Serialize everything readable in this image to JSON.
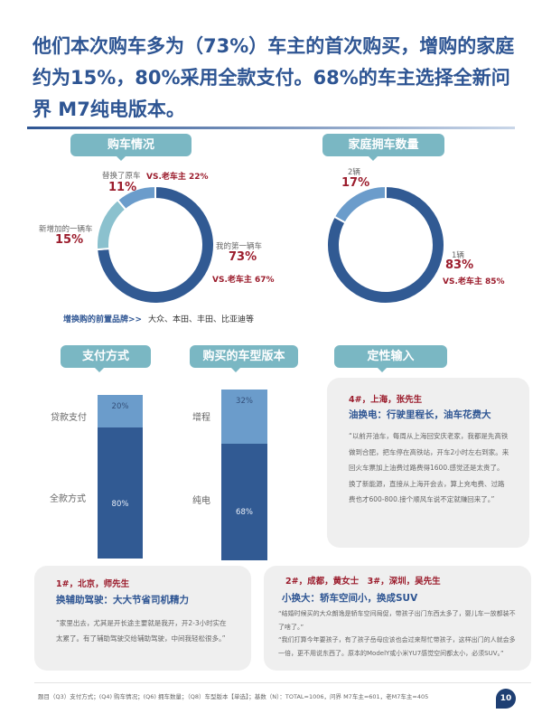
{
  "title": "他们本次购车多为（73%）车主的首次购买，增购的家庭约为15%，80%采用全款支付。68%的车主选择全新问界 M7纯电版本。",
  "chart_data": [
    {
      "type": "pie",
      "title": "购车情况",
      "colors": [
        "#315a93",
        "#8bc1ce",
        "#6b9ccb"
      ],
      "slices": [
        {
          "label": "我的第一辆车",
          "value": 73,
          "compare": "VS.老车主 67%"
        },
        {
          "label": "新增加的一辆车",
          "value": 15
        },
        {
          "label": "替换了原车",
          "value": 11,
          "compare": "VS.老车主 22%"
        }
      ],
      "note_label": "增换购的前置品牌>>",
      "note_value": "大众、本田、丰田、比亚迪等"
    },
    {
      "type": "pie",
      "title": "家庭拥车数量",
      "colors": [
        "#315a93",
        "#6b9ccb"
      ],
      "slices": [
        {
          "label": "1辆",
          "value": 83,
          "compare": "VS.老车主 85%"
        },
        {
          "label": "2辆",
          "value": 17
        }
      ]
    },
    {
      "type": "bar",
      "title": "支付方式",
      "stacked": true,
      "segments": [
        {
          "label": "全款方式",
          "value": 80
        },
        {
          "label": "贷款支付",
          "value": 20
        }
      ]
    },
    {
      "type": "bar",
      "title": "购买的车型版本",
      "stacked": true,
      "segments": [
        {
          "label": "纯电",
          "value": 68
        },
        {
          "label": "增程",
          "value": 32
        }
      ]
    }
  ],
  "qualitative": {
    "title": "定性输入",
    "q4": {
      "who": "4#，上海，张先生",
      "headline": "油换电：行驶里程长，油车花费大",
      "quote": "“以前开油车，每周从上海回安庆老家，我都是先高铁做到合肥，把车停在高铁站，开车2小时左右到家。来回火车票加上油费过路费得1600.感觉还是太贵了。换了新能源，直接从上海开会去，算上充电费、过路费也才600-800.接个顺风车说不定就赚回来了。”"
    },
    "q1": {
      "who": "1#，北京，师先生",
      "headline": "换辅助驾驶：大大节省司机精力",
      "quote": "“家里出去，尤其是开长途主要就是我开，开2-3小时实在太累了。有了辅助驾驶交给辅助驾驶，中间我轻松很多。”"
    },
    "q23": {
      "who": "2#，成都，黄女士　3#，深圳，吴先生",
      "headline": "小换大：轿车空间小，换成SUV",
      "quote1": "“结婚时候买的大众朗逸是轿车空间局促，带孩子出门东西太多了，婴儿车一放都装不了啥了。”",
      "quote2": "“我们打算今年要孩子，有了孩子岳母应该也会过来帮忙带孩子，这样出门的人就会多一倍，更不用说东西了。原本的ModelY或小米YU7感觉空间都太小，必须SUV。”"
    }
  },
  "footer": "题目（Q3）支付方式；(Q4) 购车情况；(Q6) 拥车数量；（Q8）车型版本【单选】；基数（N）：TOTAL=1006，问界 M7车主=601，老M7车主=405",
  "page": "10"
}
